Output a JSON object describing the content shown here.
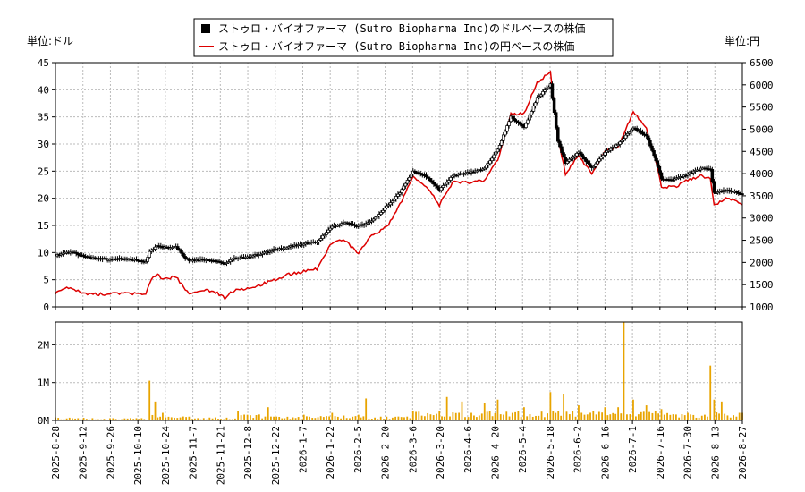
{
  "chart_data": {
    "type": "line",
    "legend": {
      "placement": "top-center",
      "entries": [
        {
          "label": "ストゥロ・バイオファーマ (Sutro Biopharma Inc)のドルベースの株価",
          "color": "#000000",
          "marker": "square"
        },
        {
          "label": "ストゥロ・バイオファーマ (Sutro Biopharma Inc)の円ベースの株価",
          "color": "#dd0000",
          "marker": "line"
        }
      ]
    },
    "left_unit_label": "単位:ドル",
    "right_unit_label": "単位:円",
    "price_axis_left": {
      "min": 0,
      "max": 45,
      "ticks": [
        0,
        5,
        10,
        15,
        20,
        25,
        30,
        35,
        40,
        45
      ]
    },
    "price_axis_right": {
      "min": 1000,
      "max": 6500,
      "ticks": [
        1000,
        1500,
        2000,
        2500,
        3000,
        3500,
        4000,
        4500,
        5000,
        5500,
        6000,
        6500
      ]
    },
    "volume_axis": {
      "min": 0,
      "max": 2600000,
      "ticks": [
        {
          "value": 0,
          "label": "0M"
        },
        {
          "value": 1000000,
          "label": "1M"
        },
        {
          "value": 2000000,
          "label": "2M"
        }
      ]
    },
    "x_axis": {
      "start": "2025-08-28",
      "end": "2026-08-28",
      "tick_labels": [
        "2025-8-28",
        "2025-9-12",
        "2025-9-26",
        "2025-10-10",
        "2025-10-24",
        "2025-11-7",
        "2025-11-21",
        "2025-12-8",
        "2025-12-22",
        "2026-1-7",
        "2026-1-22",
        "2026-2-5",
        "2026-2-20",
        "2026-3-6",
        "2026-3-20",
        "2026-4-6",
        "2026-4-20",
        "2026-5-4",
        "2026-5-18",
        "2026-6-2",
        "2026-6-16",
        "2026-7-1",
        "2026-7-16",
        "2026-7-30",
        "2026-8-13",
        "2026-8-27"
      ]
    },
    "grid": true,
    "series": [
      {
        "name": "ストゥロ・バイオファーマ (Sutro Biopharma Inc)のドルベースの株価",
        "axis": "left",
        "points": [
          [
            "2025-08-28",
            9.5
          ],
          [
            "2025-09-05",
            10.2
          ],
          [
            "2025-09-12",
            9.3
          ],
          [
            "2025-09-19",
            8.9
          ],
          [
            "2025-09-26",
            8.8
          ],
          [
            "2025-10-03",
            8.9
          ],
          [
            "2025-10-10",
            8.6
          ],
          [
            "2025-10-15",
            8.3
          ],
          [
            "2025-10-17",
            10.2
          ],
          [
            "2025-10-21",
            11.3
          ],
          [
            "2025-10-24",
            10.9
          ],
          [
            "2025-10-31",
            11.1
          ],
          [
            "2025-11-05",
            9.0
          ],
          [
            "2025-11-07",
            8.5
          ],
          [
            "2025-11-14",
            8.7
          ],
          [
            "2025-11-21",
            8.4
          ],
          [
            "2025-11-26",
            8.0
          ],
          [
            "2025-12-01",
            8.9
          ],
          [
            "2025-12-08",
            9.2
          ],
          [
            "2025-12-15",
            9.8
          ],
          [
            "2025-12-22",
            10.5
          ],
          [
            "2025-12-29",
            11.0
          ],
          [
            "2026-01-07",
            11.6
          ],
          [
            "2026-01-14",
            12.0
          ],
          [
            "2026-01-22",
            14.8
          ],
          [
            "2026-01-29",
            15.5
          ],
          [
            "2026-02-05",
            14.9
          ],
          [
            "2026-02-12",
            15.8
          ],
          [
            "2026-02-20",
            18.5
          ],
          [
            "2026-02-27",
            21.0
          ],
          [
            "2026-03-06",
            25.0
          ],
          [
            "2026-03-13",
            24.0
          ],
          [
            "2026-03-20",
            21.5
          ],
          [
            "2026-03-27",
            24.2
          ],
          [
            "2026-04-06",
            24.8
          ],
          [
            "2026-04-13",
            25.5
          ],
          [
            "2026-04-20",
            29.0
          ],
          [
            "2026-04-27",
            35.0
          ],
          [
            "2026-05-04",
            33.0
          ],
          [
            "2026-05-11",
            38.5
          ],
          [
            "2026-05-18",
            41.0
          ],
          [
            "2026-05-22",
            30.5
          ],
          [
            "2026-05-26",
            26.5
          ],
          [
            "2026-06-02",
            28.5
          ],
          [
            "2026-06-09",
            25.5
          ],
          [
            "2026-06-16",
            28.5
          ],
          [
            "2026-06-23",
            30.0
          ],
          [
            "2026-07-01",
            33.0
          ],
          [
            "2026-07-08",
            31.5
          ],
          [
            "2026-07-13",
            27.0
          ],
          [
            "2026-07-16",
            23.5
          ],
          [
            "2026-07-23",
            23.5
          ],
          [
            "2026-07-30",
            24.5
          ],
          [
            "2026-08-06",
            25.5
          ],
          [
            "2026-08-11",
            25.3
          ],
          [
            "2026-08-13",
            21.0
          ],
          [
            "2026-08-20",
            21.5
          ],
          [
            "2026-08-28",
            20.8
          ]
        ]
      },
      {
        "name": "ストゥロ・バイオファーマ (Sutro Biopharma Inc)の円ベースの株価",
        "axis": "right",
        "points": [
          [
            "2025-08-28",
            1300
          ],
          [
            "2025-09-05",
            1450
          ],
          [
            "2025-09-12",
            1300
          ],
          [
            "2025-09-19",
            1280
          ],
          [
            "2025-09-26",
            1300
          ],
          [
            "2025-10-03",
            1300
          ],
          [
            "2025-10-10",
            1290
          ],
          [
            "2025-10-15",
            1260
          ],
          [
            "2025-10-17",
            1550
          ],
          [
            "2025-10-21",
            1750
          ],
          [
            "2025-10-24",
            1620
          ],
          [
            "2025-10-31",
            1680
          ],
          [
            "2025-11-05",
            1400
          ],
          [
            "2025-11-07",
            1300
          ],
          [
            "2025-11-14",
            1380
          ],
          [
            "2025-11-21",
            1330
          ],
          [
            "2025-11-26",
            1200
          ],
          [
            "2025-12-01",
            1380
          ],
          [
            "2025-12-08",
            1420
          ],
          [
            "2025-12-15",
            1500
          ],
          [
            "2025-12-22",
            1600
          ],
          [
            "2025-12-29",
            1720
          ],
          [
            "2026-01-07",
            1800
          ],
          [
            "2026-01-14",
            1850
          ],
          [
            "2026-01-22",
            2450
          ],
          [
            "2026-01-29",
            2500
          ],
          [
            "2026-02-05",
            2200
          ],
          [
            "2026-02-12",
            2600
          ],
          [
            "2026-02-20",
            2800
          ],
          [
            "2026-02-27",
            3300
          ],
          [
            "2026-03-06",
            3950
          ],
          [
            "2026-03-13",
            3700
          ],
          [
            "2026-03-20",
            3300
          ],
          [
            "2026-03-27",
            3800
          ],
          [
            "2026-04-06",
            3800
          ],
          [
            "2026-04-13",
            3850
          ],
          [
            "2026-04-20",
            4300
          ],
          [
            "2026-04-27",
            5350
          ],
          [
            "2026-05-04",
            5350
          ],
          [
            "2026-05-11",
            6050
          ],
          [
            "2026-05-18",
            6300
          ],
          [
            "2026-05-22",
            4800
          ],
          [
            "2026-05-26",
            4000
          ],
          [
            "2026-06-02",
            4400
          ],
          [
            "2026-06-09",
            4000
          ],
          [
            "2026-06-16",
            4500
          ],
          [
            "2026-06-23",
            4600
          ],
          [
            "2026-07-01",
            5400
          ],
          [
            "2026-07-08",
            5000
          ],
          [
            "2026-07-13",
            4300
          ],
          [
            "2026-07-16",
            3700
          ],
          [
            "2026-07-23",
            3700
          ],
          [
            "2026-07-30",
            3850
          ],
          [
            "2026-08-06",
            3950
          ],
          [
            "2026-08-11",
            3900
          ],
          [
            "2026-08-13",
            3300
          ],
          [
            "2026-08-20",
            3450
          ],
          [
            "2026-08-28",
            3300
          ]
        ]
      },
      {
        "name": "volume",
        "axis": "volume",
        "color": "#e8a400",
        "points": [
          [
            "2025-08-28",
            80000
          ],
          [
            "2025-09-12",
            70000
          ],
          [
            "2025-09-26",
            60000
          ],
          [
            "2025-10-10",
            60000
          ],
          [
            "2025-10-17",
            1050000
          ],
          [
            "2025-10-20",
            500000
          ],
          [
            "2025-10-24",
            200000
          ],
          [
            "2025-11-07",
            100000
          ],
          [
            "2025-11-21",
            80000
          ],
          [
            "2025-12-03",
            250000
          ],
          [
            "2025-12-08",
            150000
          ],
          [
            "2025-12-19",
            350000
          ],
          [
            "2025-12-22",
            100000
          ],
          [
            "2026-01-07",
            150000
          ],
          [
            "2026-01-22",
            200000
          ],
          [
            "2026-02-05",
            150000
          ],
          [
            "2026-02-09",
            580000
          ],
          [
            "2026-02-20",
            100000
          ],
          [
            "2026-03-06",
            250000
          ],
          [
            "2026-03-20",
            250000
          ],
          [
            "2026-03-24",
            620000
          ],
          [
            "2026-04-01",
            500000
          ],
          [
            "2026-04-06",
            200000
          ],
          [
            "2026-04-13",
            450000
          ],
          [
            "2026-04-20",
            550000
          ],
          [
            "2026-05-04",
            350000
          ],
          [
            "2026-05-18",
            750000
          ],
          [
            "2026-05-25",
            700000
          ],
          [
            "2026-06-02",
            400000
          ],
          [
            "2026-06-16",
            350000
          ],
          [
            "2026-06-23",
            350000
          ],
          [
            "2026-06-26",
            2600000
          ],
          [
            "2026-07-01",
            550000
          ],
          [
            "2026-07-08",
            400000
          ],
          [
            "2026-07-16",
            300000
          ],
          [
            "2026-07-30",
            200000
          ],
          [
            "2026-08-11",
            1450000
          ],
          [
            "2026-08-13",
            550000
          ],
          [
            "2026-08-17",
            500000
          ],
          [
            "2026-08-28",
            200000
          ]
        ]
      }
    ]
  }
}
